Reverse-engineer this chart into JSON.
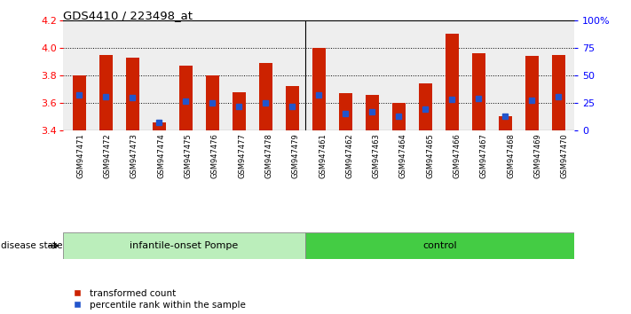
{
  "title": "GDS4410 / 223498_at",
  "samples": [
    "GSM947471",
    "GSM947472",
    "GSM947473",
    "GSM947474",
    "GSM947475",
    "GSM947476",
    "GSM947477",
    "GSM947478",
    "GSM947479",
    "GSM947461",
    "GSM947462",
    "GSM947463",
    "GSM947464",
    "GSM947465",
    "GSM947466",
    "GSM947467",
    "GSM947468",
    "GSM947469",
    "GSM947470"
  ],
  "bar_values": [
    3.8,
    3.95,
    3.93,
    3.46,
    3.87,
    3.8,
    3.68,
    3.89,
    3.72,
    4.0,
    3.67,
    3.66,
    3.6,
    3.74,
    4.1,
    3.96,
    3.5,
    3.94,
    3.95
  ],
  "percentile_values": [
    3.655,
    3.645,
    3.637,
    3.46,
    3.615,
    3.6,
    3.575,
    3.6,
    3.575,
    3.655,
    3.525,
    3.535,
    3.5,
    3.555,
    3.625,
    3.635,
    3.5,
    3.62,
    3.648
  ],
  "ymin": 3.4,
  "ymax": 4.2,
  "yticks": [
    3.4,
    3.6,
    3.8,
    4.0,
    4.2
  ],
  "right_yticks": [
    0,
    25,
    50,
    75,
    100
  ],
  "right_ytick_labels": [
    "0",
    "25",
    "50",
    "75",
    "100%"
  ],
  "bar_color": "#CC2200",
  "marker_color": "#2255CC",
  "bg_color": "#FFFFFF",
  "group1_label": "infantile-onset Pompe",
  "group2_label": "control",
  "group1_count": 9,
  "group2_count": 10,
  "group1_bg": "#BBEEBB",
  "group2_bg": "#44CC44",
  "disease_state_label": "disease state",
  "legend_bar": "transformed count",
  "legend_marker": "percentile rank within the sample",
  "bar_width": 0.5
}
